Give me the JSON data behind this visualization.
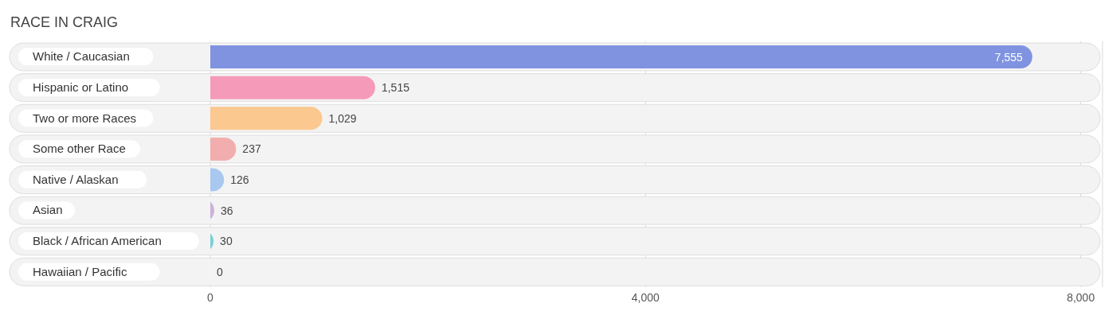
{
  "chart_data": {
    "type": "bar",
    "orientation": "horizontal",
    "title": "RACE IN CRAIG",
    "categories": [
      "White / Caucasian",
      "Hispanic or Latino",
      "Two or more Races",
      "Some other Race",
      "Native / Alaskan",
      "Asian",
      "Black / African American",
      "Hawaiian / Pacific"
    ],
    "values": [
      7555,
      1515,
      1029,
      237,
      126,
      36,
      30,
      0
    ],
    "colors": [
      "#7f93e0",
      "#f59ab8",
      "#fbc890",
      "#f2aeae",
      "#a8c8ef",
      "#cbb2d6",
      "#7ecfd6",
      "#b4bdee"
    ],
    "value_labels": [
      "7,555",
      "1,515",
      "1,029",
      "237",
      "126",
      "36",
      "30",
      "0"
    ],
    "xlim": [
      0,
      8200
    ],
    "xticks": [
      {
        "value": 0,
        "label": "0"
      },
      {
        "value": 4000,
        "label": "4,000"
      },
      {
        "value": 8000,
        "label": "8,000"
      }
    ],
    "grid": "x"
  }
}
